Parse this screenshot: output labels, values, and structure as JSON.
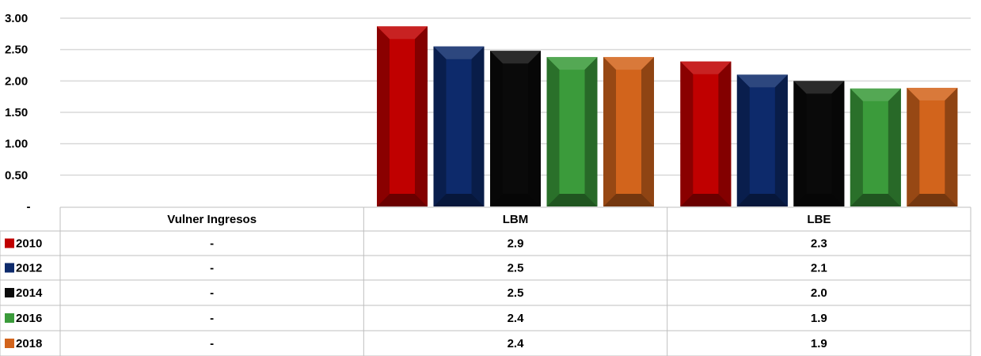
{
  "chart_data": {
    "type": "bar",
    "categories": [
      "Vulner Ingresos",
      "LBM",
      "LBE"
    ],
    "series": [
      {
        "name": "2010",
        "color": "#c00000",
        "values": [
          0,
          2.87,
          2.31
        ],
        "labels": [
          "-",
          "2.9",
          "2.3"
        ]
      },
      {
        "name": "2012",
        "color": "#0d2a6b",
        "values": [
          0,
          2.55,
          2.1
        ],
        "labels": [
          "-",
          "2.5",
          "2.1"
        ]
      },
      {
        "name": "2014",
        "color": "#0a0a0a",
        "values": [
          0,
          2.48,
          2.0
        ],
        "labels": [
          "-",
          "2.5",
          "2.0"
        ]
      },
      {
        "name": "2016",
        "color": "#3b9b3b",
        "values": [
          0,
          2.38,
          1.88
        ],
        "labels": [
          "-",
          "2.4",
          "1.9"
        ]
      },
      {
        "name": "2018",
        "color": "#d2641c",
        "values": [
          0,
          2.38,
          1.89
        ],
        "labels": [
          "-",
          "2.4",
          "1.9"
        ]
      }
    ],
    "y_ticks": [
      "-",
      "0.50",
      "1.00",
      "1.50",
      "2.00",
      "2.50",
      "3.00"
    ],
    "ylim": [
      0,
      3
    ],
    "grid": true,
    "legend": "data-table"
  }
}
